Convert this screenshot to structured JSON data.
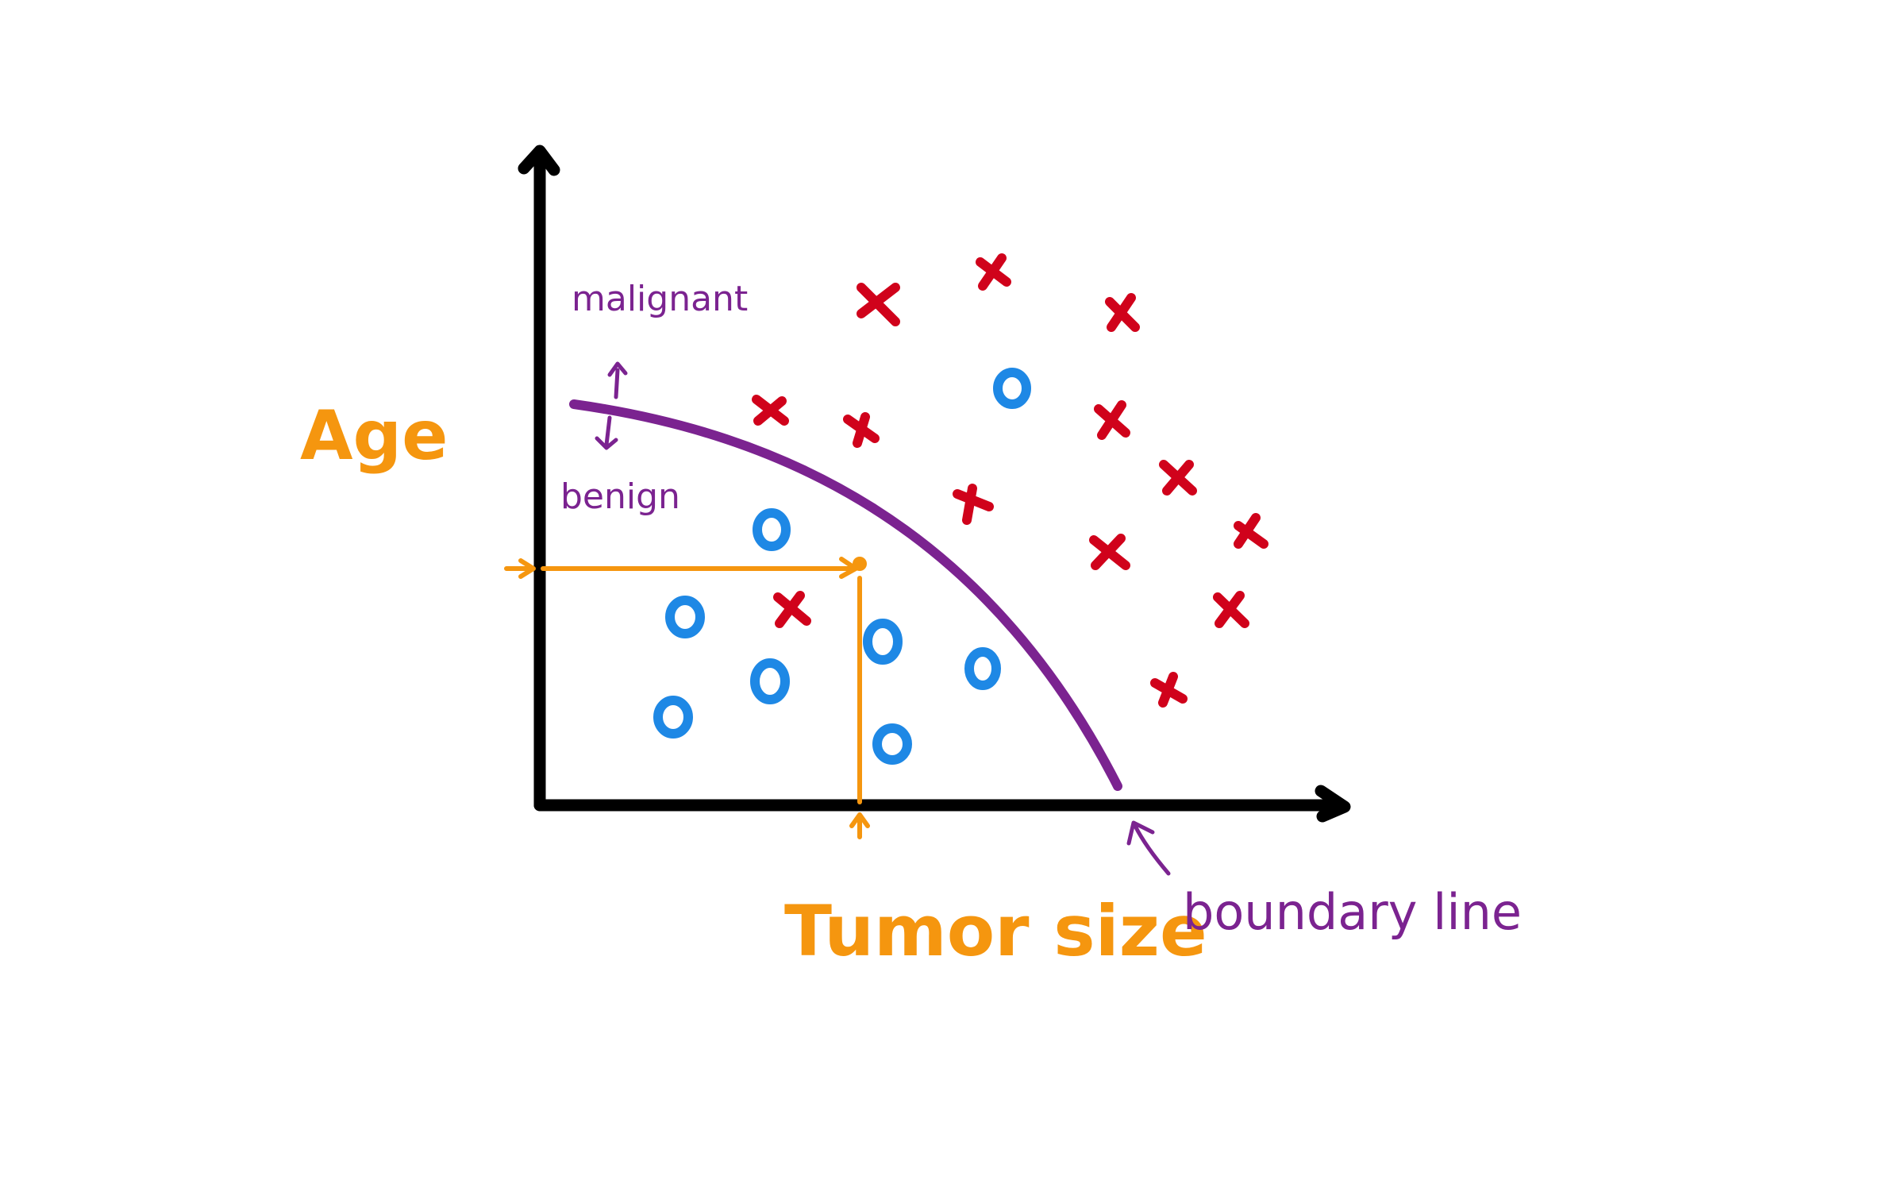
{
  "labels": {
    "y_axis": "Age",
    "x_axis": "Tumor size",
    "upper_region": "malignant",
    "lower_region": "benign",
    "curve_note": "boundary line"
  },
  "colors": {
    "axis": "#000000",
    "boundary": "#7b2390",
    "guide": "#f5960f",
    "axis_label": "#f5960f",
    "annotation": "#7b2390",
    "benign_marker": "#1e88e5",
    "malignant_marker": "#d0021b"
  },
  "markers": {
    "benign_symbol": "o",
    "malignant_symbol": "x"
  }
}
